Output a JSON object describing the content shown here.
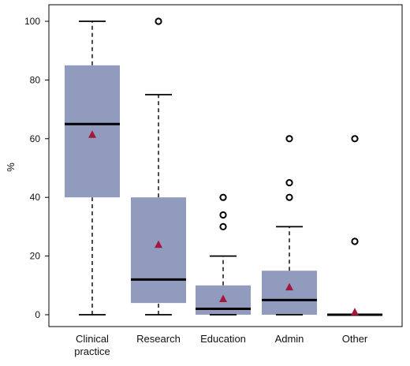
{
  "chart_data": {
    "type": "boxplot",
    "ylabel": "%",
    "ylim": [
      0,
      100
    ],
    "yticks": [
      "0",
      "20",
      "40",
      "60",
      "80",
      "100"
    ],
    "grid": false,
    "legend": "none",
    "colors": {
      "box_fill": "#919bbd",
      "median": "#000000",
      "mean_marker": "#a3173d",
      "outlier_stroke": "#000000",
      "whisker": "#000000"
    },
    "categories": [
      {
        "label_lines": [
          "Clinical",
          "practice"
        ],
        "whisker_low": 0,
        "q1": 40,
        "median": 65,
        "q3": 85,
        "whisker_high": 100,
        "mean": 61.5,
        "outliers": []
      },
      {
        "label_lines": [
          "Research"
        ],
        "whisker_low": 0,
        "q1": 4,
        "median": 12,
        "q3": 40,
        "whisker_high": 75,
        "mean": 24,
        "outliers": [
          100
        ]
      },
      {
        "label_lines": [
          "Education"
        ],
        "whisker_low": 0,
        "q1": 0,
        "median": 2,
        "q3": 10,
        "whisker_high": 20,
        "mean": 5.5,
        "outliers": [
          30,
          34,
          40
        ]
      },
      {
        "label_lines": [
          "Admin"
        ],
        "whisker_low": 0,
        "q1": 0,
        "median": 5,
        "q3": 15,
        "whisker_high": 30,
        "mean": 9.5,
        "outliers": [
          40,
          45,
          60
        ]
      },
      {
        "label_lines": [
          "Other"
        ],
        "whisker_low": 0,
        "q1": 0,
        "median": 0,
        "q3": 0,
        "whisker_high": 0,
        "mean": 1,
        "outliers": [
          25,
          60
        ]
      }
    ]
  }
}
